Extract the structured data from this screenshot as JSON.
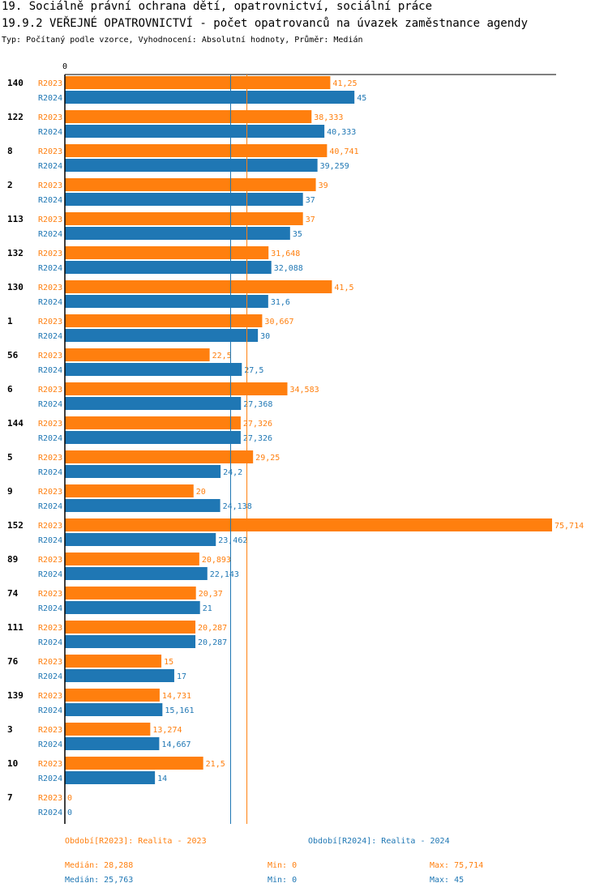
{
  "header": {
    "title_line1": "19. Sociálně právní ochrana dětí, opatrovnictví, sociální práce",
    "title_line2": "19.9.2 VEŘEJNÉ OPATROVNICTVÍ - počet opatrovanců na úvazek zaměstnance agendy",
    "subtitle": "Typ: Počítaný podle vzorce, Vyhodnocení: Absolutní hodnoty, Průměr: Medián"
  },
  "colors": {
    "r2023": "#ff7f0e",
    "r2024": "#1f77b4",
    "axis": "#000000"
  },
  "chart_data": {
    "type": "bar",
    "orientation": "horizontal",
    "title": "19.9.2 VEŘEJNÉ OPATROVNICTVÍ - počet opatrovanců na úvazek zaměstnance agendy",
    "axis_origin_label": "0",
    "xlim": [
      0,
      75.714
    ],
    "categories": [
      "140",
      "122",
      "8",
      "2",
      "113",
      "132",
      "130",
      "1",
      "56",
      "6",
      "144",
      "5",
      "9",
      "152",
      "89",
      "74",
      "111",
      "76",
      "139",
      "3",
      "10",
      "7"
    ],
    "series": [
      {
        "name": "R2023",
        "values": [
          41.25,
          38.333,
          40.741,
          39,
          37,
          31.648,
          41.5,
          30.667,
          22.5,
          34.583,
          27.326,
          29.25,
          20,
          75.714,
          20.893,
          20.37,
          20.287,
          15,
          14.731,
          13.274,
          21.5,
          0
        ],
        "labels": [
          "41,25",
          "38,333",
          "40,741",
          "39",
          "37",
          "31,648",
          "41,5",
          "30,667",
          "22,5",
          "34,583",
          "27,326",
          "29,25",
          "20",
          "75,714",
          "20,893",
          "20,37",
          "20,287",
          "15",
          "14,731",
          "13,274",
          "21,5",
          "0"
        ]
      },
      {
        "name": "R2024",
        "values": [
          45,
          40.333,
          39.259,
          37,
          35,
          32.088,
          31.6,
          30,
          27.5,
          27.368,
          27.326,
          24.2,
          24.138,
          23.462,
          22.143,
          21,
          20.287,
          17,
          15.161,
          14.667,
          14,
          0
        ],
        "labels": [
          "45",
          "40,333",
          "39,259",
          "37",
          "35",
          "32,088",
          "31,6",
          "30",
          "27,5",
          "27,368",
          "27,326",
          "24,2",
          "24,138",
          "23,462",
          "22,143",
          "21",
          "20,287",
          "17",
          "15,161",
          "14,667",
          "14",
          "0"
        ]
      }
    ],
    "median_lines": [
      {
        "series": "R2023",
        "value": 28.288
      },
      {
        "series": "R2024",
        "value": 25.763
      }
    ]
  },
  "legend": {
    "r2023_label": "Období[R2023]: Realita - 2023",
    "r2024_label": "Období[R2024]: Realita - 2024",
    "r2023_median": "Medián: 28,288",
    "r2023_min": "Min: 0",
    "r2023_max": "Max: 75,714",
    "r2024_median": "Medián: 25,763",
    "r2024_min": "Min: 0",
    "r2024_max": "Max: 45"
  }
}
